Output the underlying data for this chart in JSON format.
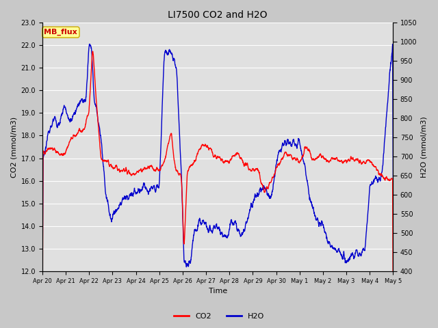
{
  "title": "LI7500 CO2 and H2O",
  "xlabel": "Time",
  "ylabel_left": "CO2 (mmol/m3)",
  "ylabel_right": "H2O (mmol/m3)",
  "annotation": "MB_flux",
  "annotation_color": "#cc0000",
  "annotation_bg": "#ffff99",
  "annotation_edge": "#ccaa00",
  "ylim_left": [
    12.0,
    23.0
  ],
  "ylim_right": [
    400,
    1050
  ],
  "yticks_left": [
    12.0,
    13.0,
    14.0,
    15.0,
    16.0,
    17.0,
    18.0,
    19.0,
    20.0,
    21.0,
    22.0,
    23.0
  ],
  "yticks_right": [
    400,
    450,
    500,
    550,
    600,
    650,
    700,
    750,
    800,
    850,
    900,
    950,
    1000,
    1050
  ],
  "xtick_labels": [
    "Apr 20",
    "Apr 21",
    "Apr 22",
    "Apr 23",
    "Apr 24",
    "Apr 25",
    "Apr 26",
    "Apr 27",
    "Apr 28",
    "Apr 29",
    "Apr 30",
    "May 1",
    "May 2",
    "May 3",
    "May 4",
    "May 5"
  ],
  "co2_color": "#ff0000",
  "h2o_color": "#0000cc",
  "fig_bg_color": "#c8c8c8",
  "plot_bg_color": "#e0e0e0",
  "grid_color": "#ffffff",
  "title_fontsize": 10,
  "axis_label_fontsize": 8,
  "tick_fontsize": 7,
  "legend_fontsize": 8,
  "line_width": 1.0
}
